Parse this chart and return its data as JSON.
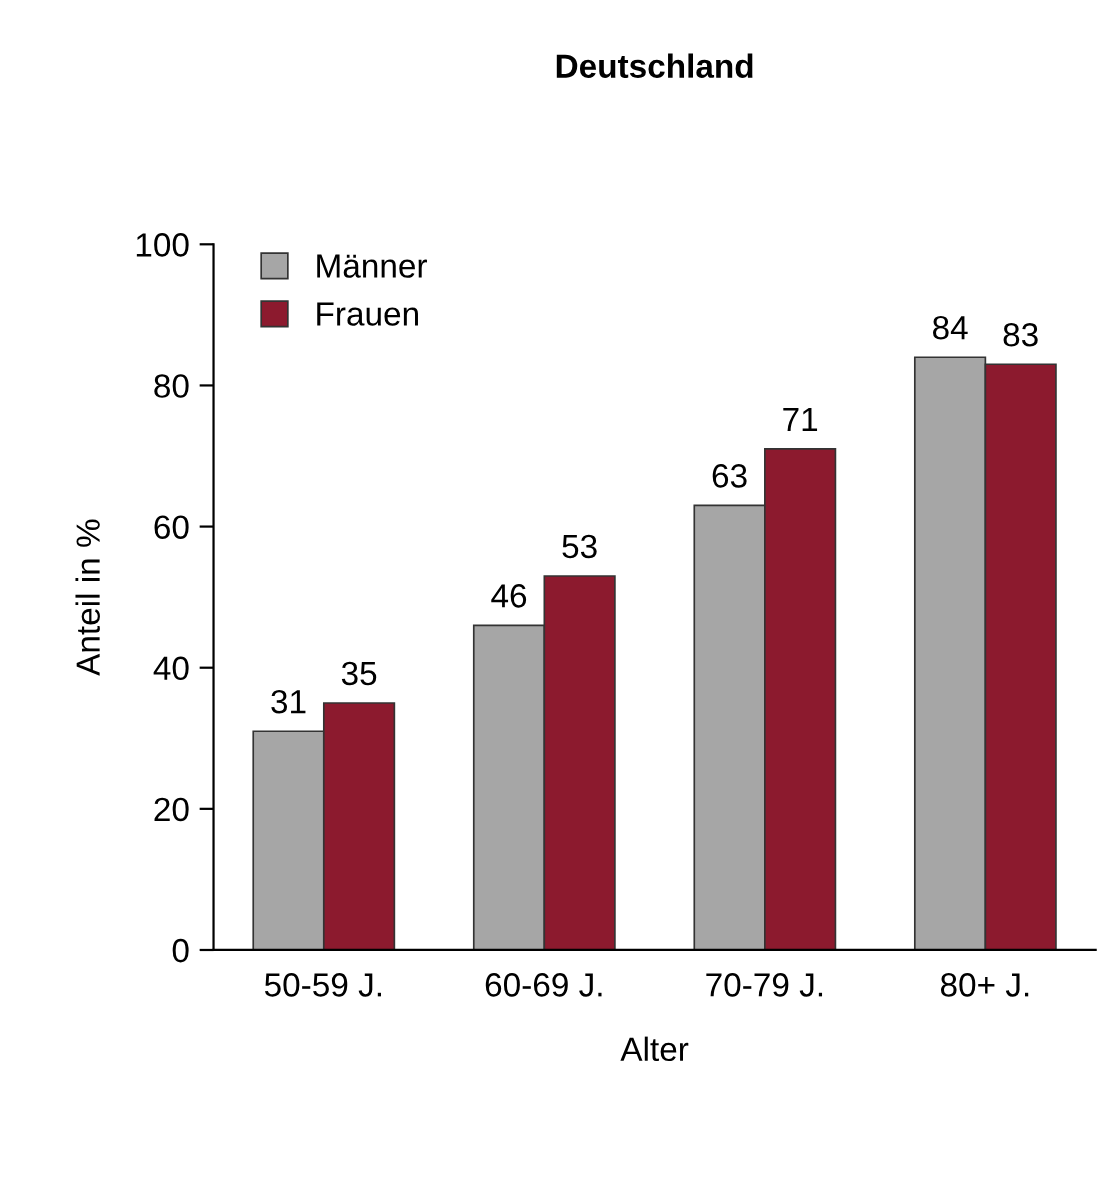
{
  "chart_data": {
    "type": "bar",
    "title": "Deutschland",
    "xlabel": "Alter",
    "ylabel": "Anteil in %",
    "categories": [
      "50-59 J.",
      "60-69 J.",
      "70-79 J.",
      "80+ J."
    ],
    "series": [
      {
        "name": "Männer",
        "color": "#a6a6a6",
        "values": [
          31,
          46,
          63,
          84
        ]
      },
      {
        "name": "Frauen",
        "color": "#8c1a2e",
        "values": [
          35,
          53,
          71,
          83
        ]
      }
    ],
    "ylim": [
      0,
      100
    ],
    "yticks": [
      0,
      20,
      40,
      60,
      80,
      100
    ],
    "data_labels": true,
    "legend": "top left",
    "grid": false
  }
}
